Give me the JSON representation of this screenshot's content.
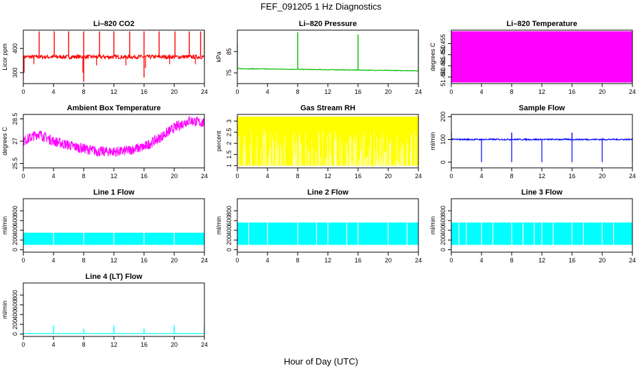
{
  "figure": {
    "title": "FEF_091205  1 Hz Diagnostics",
    "xlabel": "Hour of Day (UTC)"
  },
  "chart_data": [
    {
      "type": "line",
      "title": "Li–820 CO2",
      "ylabel": "Licor ppm",
      "color": "#ff0000",
      "xlim": [
        0,
        24
      ],
      "xticks": [
        0,
        4,
        8,
        12,
        16,
        20,
        24
      ],
      "ylim": [
        255,
        475
      ],
      "yticks": [
        300,
        400
      ],
      "baseline": 365,
      "noise": 8,
      "spikes": [
        [
          2.1,
          470
        ],
        [
          4.1,
          470
        ],
        [
          6.0,
          470
        ],
        [
          8.0,
          470
        ],
        [
          8.0,
          262
        ],
        [
          10.1,
          470
        ],
        [
          12.0,
          470
        ],
        [
          14.1,
          470
        ],
        [
          16.0,
          470
        ],
        [
          16.0,
          280
        ],
        [
          18.0,
          470
        ],
        [
          20.1,
          470
        ],
        [
          22.0,
          470
        ],
        [
          23.5,
          470
        ],
        [
          24.0,
          470
        ]
      ],
      "dips": [
        [
          0,
          265
        ],
        [
          0.1,
          300
        ],
        [
          1.4,
          335
        ],
        [
          7.9,
          300
        ],
        [
          9.7,
          330
        ],
        [
          13.6,
          330
        ],
        [
          16.2,
          320
        ],
        [
          19.4,
          335
        ],
        [
          22.8,
          335
        ],
        [
          24.0,
          335
        ]
      ]
    },
    {
      "type": "line",
      "title": "Li–820 Pressure",
      "ylabel": "kPa",
      "color": "#00bb00",
      "xlim": [
        0,
        24
      ],
      "xticks": [
        0,
        4,
        8,
        12,
        16,
        20,
        24
      ],
      "ylim": [
        70,
        95
      ],
      "yticks": [
        75,
        85
      ],
      "baseline": [
        [
          0,
          77
        ],
        [
          24,
          76
        ]
      ],
      "noise": 0.15,
      "spikes": [
        [
          0,
          89
        ],
        [
          8,
          94
        ],
        [
          16,
          93
        ],
        [
          24,
          93
        ]
      ],
      "dips": []
    },
    {
      "type": "area",
      "title": "Li–820 Temperature",
      "ylabel": "degrees C",
      "color": "#ff00ff",
      "xlim": [
        0,
        24
      ],
      "xticks": [
        0,
        4,
        8,
        12,
        16,
        20,
        24
      ],
      "ylim": [
        51.437,
        51.461
      ],
      "yticks": [
        51.44,
        51.445,
        51.45,
        51.455
      ],
      "band": [
        51.4375,
        51.4605
      ]
    },
    {
      "type": "line",
      "title": "Ambient Box Temperature",
      "ylabel": "degrees C",
      "color": "#ff00ff",
      "xlim": [
        0,
        24
      ],
      "xticks": [
        0,
        4,
        8,
        12,
        16,
        20,
        24
      ],
      "ylim": [
        25.2,
        28.8
      ],
      "yticks": [
        25.5,
        27.0,
        28.5
      ],
      "profile": [
        [
          0,
          27.0
        ],
        [
          2,
          27.5
        ],
        [
          4,
          27.0
        ],
        [
          7,
          26.6
        ],
        [
          10,
          26.3
        ],
        [
          13,
          26.3
        ],
        [
          16,
          26.6
        ],
        [
          18,
          27.2
        ],
        [
          20,
          27.9
        ],
        [
          22,
          28.4
        ],
        [
          24,
          28.2
        ]
      ],
      "noise": 0.35
    },
    {
      "type": "area",
      "title": "Gas Stream RH",
      "ylabel": "percent",
      "color": "#ffff00",
      "xlim": [
        0,
        24
      ],
      "xticks": [
        0,
        4,
        8,
        12,
        16,
        20,
        24
      ],
      "ylim": [
        0.9,
        3.3
      ],
      "yticks": [
        1.0,
        1.5,
        2.0,
        2.5,
        3.0
      ],
      "band": [
        1.0,
        3.2
      ]
    },
    {
      "type": "line",
      "title": "Sample Flow",
      "ylabel": "ml/min",
      "color": "#0000ff",
      "xlim": [
        0,
        24
      ],
      "xticks": [
        0,
        4,
        8,
        12,
        16,
        20,
        24
      ],
      "ylim": [
        -25,
        210
      ],
      "yticks": [
        0,
        100,
        200
      ],
      "baseline": 100,
      "noise": 3,
      "spikes": [
        [
          0,
          135
        ],
        [
          8,
          130
        ],
        [
          16,
          130
        ]
      ],
      "dips": [
        [
          4,
          0
        ],
        [
          8,
          0
        ],
        [
          12,
          0
        ],
        [
          16,
          0
        ],
        [
          20,
          0
        ],
        [
          24,
          0
        ]
      ]
    },
    {
      "type": "area",
      "title": "Line 1 Flow",
      "ylabel": "ml/min",
      "color": "#00ffff",
      "xlim": [
        0,
        24
      ],
      "xticks": [
        0,
        4,
        8,
        12,
        16,
        20,
        24
      ],
      "ylim": [
        -50,
        1050
      ],
      "yticks": [
        0,
        200,
        400,
        600,
        800
      ],
      "band": [
        100,
        350
      ],
      "gaps": [
        4,
        8,
        12,
        16,
        20,
        24
      ]
    },
    {
      "type": "area",
      "title": "Line 2 Flow",
      "ylabel": "ml/min",
      "color": "#00ffff",
      "xlim": [
        0,
        24
      ],
      "xticks": [
        0,
        4,
        8,
        12,
        16,
        20,
        24
      ],
      "ylim": [
        -50,
        1050
      ],
      "yticks": [
        0,
        200,
        400,
        600,
        800
      ],
      "band": [
        100,
        560
      ],
      "gaps": [
        1.5,
        4,
        8,
        10.5,
        12,
        14.5,
        16,
        20,
        22.5,
        24
      ]
    },
    {
      "type": "area",
      "title": "Line 3 Flow",
      "ylabel": "ml/min",
      "color": "#00ffff",
      "xlim": [
        0,
        24
      ],
      "xticks": [
        0,
        4,
        8,
        12,
        16,
        20,
        24
      ],
      "ylim": [
        -50,
        1050
      ],
      "yticks": [
        0,
        200,
        400,
        600,
        800
      ],
      "band": [
        100,
        560
      ],
      "gaps": [
        1,
        2,
        4,
        5.5,
        8,
        9.5,
        11,
        12,
        13.5,
        16,
        17.5,
        20,
        21.5,
        24
      ]
    },
    {
      "type": "line",
      "title": "Line 4 (LT) Flow",
      "ylabel": "ml/min",
      "color": "#00ffff",
      "xlim": [
        0,
        24
      ],
      "xticks": [
        0,
        4,
        8,
        12,
        16,
        20,
        24
      ],
      "ylim": [
        -50,
        1050
      ],
      "yticks": [
        0,
        200,
        400,
        600,
        800
      ],
      "baseline": 10,
      "noise": 0,
      "spikes": [
        [
          4,
          180
        ],
        [
          8,
          110
        ],
        [
          12,
          180
        ],
        [
          16,
          110
        ],
        [
          20,
          180
        ],
        [
          24,
          180
        ]
      ],
      "dips": []
    }
  ]
}
